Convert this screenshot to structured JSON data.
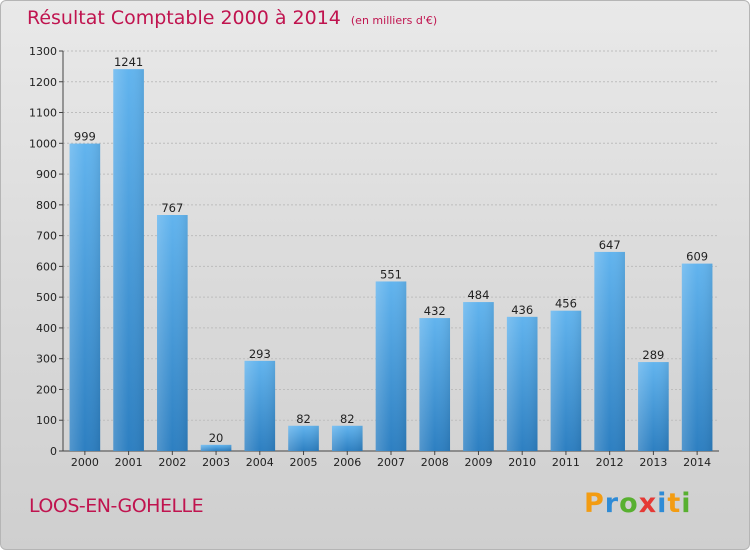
{
  "title": "Résultat Comptable 2000 à 2014",
  "unit": "(en milliers d'€)",
  "city": "LOOS-EN-GOHELLE",
  "brand": {
    "letters": [
      "P",
      "r",
      "o",
      "x",
      "i",
      "t",
      "i"
    ],
    "colors": [
      "#f39c12",
      "#2e8bd6",
      "#58b030",
      "#e53935",
      "#2e8bd6",
      "#f39c12",
      "#58b030"
    ]
  },
  "colors": {
    "title": "#c0144f",
    "bar_light": "#62b4ee",
    "bar_dark": "#2d7fc1"
  },
  "chart_data": {
    "type": "bar",
    "title": "Résultat Comptable 2000 à 2014",
    "subtitle": "(en milliers d'€)",
    "xlabel": "",
    "ylabel": "",
    "categories": [
      "2000",
      "2001",
      "2002",
      "2003",
      "2004",
      "2005",
      "2006",
      "2007",
      "2008",
      "2009",
      "2010",
      "2011",
      "2012",
      "2013",
      "2014"
    ],
    "values": [
      999,
      1241,
      767,
      20,
      293,
      82,
      82,
      551,
      432,
      484,
      436,
      456,
      647,
      289,
      609
    ],
    "ylim": [
      0,
      1300
    ],
    "yticks": [
      0,
      100,
      200,
      300,
      400,
      500,
      600,
      700,
      800,
      900,
      1000,
      1100,
      1200,
      1300
    ],
    "grid": true,
    "data_labels": true
  }
}
